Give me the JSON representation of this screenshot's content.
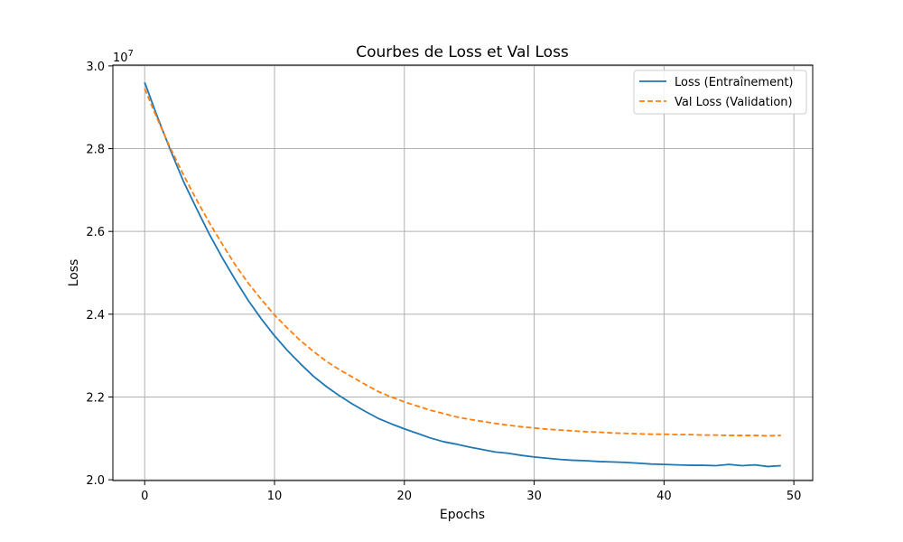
{
  "chart_data": {
    "type": "line",
    "title": "Courbes de Loss et Val Loss",
    "xlabel": "Epochs",
    "ylabel": "Loss",
    "y_offset_label": "1e7",
    "xlim": [
      -2.45,
      51.45
    ],
    "ylim": [
      19.98,
      30.02
    ],
    "y_scale_note": "values in units of 1e7",
    "x_ticks": [
      0,
      10,
      20,
      30,
      40,
      50
    ],
    "y_ticks": [
      20.0,
      22.0,
      24.0,
      26.0,
      28.0,
      30.0
    ],
    "y_tick_labels": [
      "2.0",
      "2.2",
      "2.4",
      "2.6",
      "2.8",
      "3.0"
    ],
    "grid": true,
    "legend_position": "top-right",
    "x": [
      0,
      1,
      2,
      3,
      4,
      5,
      6,
      7,
      8,
      9,
      10,
      11,
      12,
      13,
      14,
      15,
      16,
      17,
      18,
      19,
      20,
      21,
      22,
      23,
      24,
      25,
      26,
      27,
      28,
      29,
      30,
      31,
      32,
      33,
      34,
      35,
      36,
      37,
      38,
      39,
      40,
      41,
      42,
      43,
      44,
      45,
      46,
      47,
      48,
      49
    ],
    "series": [
      {
        "name": "Loss (Entraînement)",
        "color": "#1f77b4",
        "style": "solid",
        "values": [
          29.6,
          28.75,
          27.95,
          27.2,
          26.55,
          25.92,
          25.35,
          24.82,
          24.32,
          23.88,
          23.48,
          23.12,
          22.8,
          22.5,
          22.25,
          22.03,
          21.83,
          21.65,
          21.48,
          21.35,
          21.23,
          21.12,
          21.01,
          20.92,
          20.86,
          20.79,
          20.73,
          20.67,
          20.64,
          20.59,
          20.55,
          20.52,
          20.49,
          20.47,
          20.46,
          20.44,
          20.43,
          20.42,
          20.4,
          20.38,
          20.37,
          20.36,
          20.35,
          20.35,
          20.34,
          20.37,
          20.34,
          20.36,
          20.32,
          20.34
        ]
      },
      {
        "name": "Val Loss (Validation)",
        "color": "#ff7f0e",
        "style": "dashed",
        "values": [
          29.45,
          28.7,
          28.0,
          27.36,
          26.76,
          26.2,
          25.68,
          25.18,
          24.74,
          24.35,
          23.98,
          23.66,
          23.36,
          23.1,
          22.86,
          22.66,
          22.48,
          22.3,
          22.13,
          22.0,
          21.88,
          21.78,
          21.68,
          21.6,
          21.52,
          21.46,
          21.41,
          21.36,
          21.32,
          21.28,
          21.25,
          21.22,
          21.2,
          21.18,
          21.16,
          21.15,
          21.13,
          21.12,
          21.11,
          21.1,
          21.1,
          21.09,
          21.09,
          21.08,
          21.08,
          21.07,
          21.07,
          21.07,
          21.06,
          21.07
        ]
      }
    ]
  }
}
